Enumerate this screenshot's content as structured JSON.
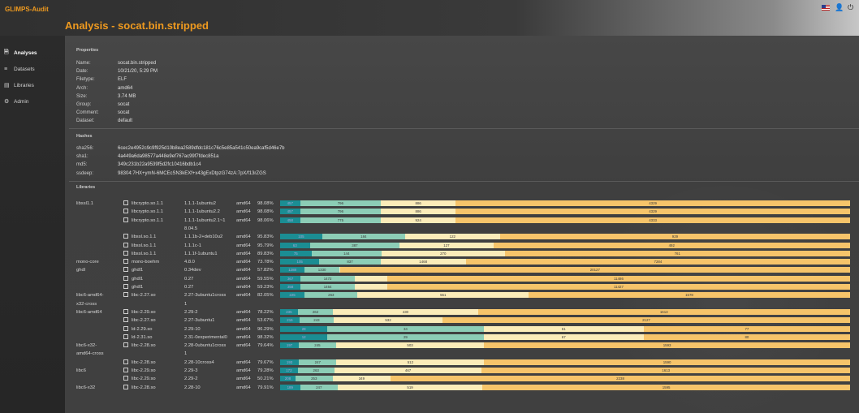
{
  "app": {
    "brand": "GLIMPS-Audit"
  },
  "page_title": "Analysis - socat.bin.stripped",
  "topbar": {
    "icons": [
      "us-flag-icon",
      "user-icon",
      "power-icon"
    ]
  },
  "sidebar": {
    "items": [
      {
        "label": "Analyses",
        "icon": "file-icon",
        "active": true
      },
      {
        "label": "Datasets",
        "icon": "datasets-icon",
        "active": false
      },
      {
        "label": "Libraries",
        "icon": "library-icon",
        "active": false
      },
      {
        "label": "Admin",
        "icon": "admin-icon",
        "active": false
      }
    ]
  },
  "properties": {
    "heading": "Properties",
    "rows": [
      {
        "k": "Name:",
        "v": "socat.bin.stripped"
      },
      {
        "k": "Date:",
        "v": "10/21/20, 5:29 PM"
      },
      {
        "k": "Filetype:",
        "v": "ELF"
      },
      {
        "k": "Arch:",
        "v": "amd64"
      },
      {
        "k": "Size:",
        "v": "3.74 MB"
      },
      {
        "k": "Group:",
        "v": "socat"
      },
      {
        "k": "Comment:",
        "v": "socat"
      },
      {
        "k": "Dataset:",
        "v": "default"
      }
    ]
  },
  "hashes": {
    "heading": "Hashes",
    "rows": [
      {
        "k": "sha256:",
        "v": "6cec2e4952c9c9f925d10b8ea2589dfdc181c76c5e85a541c50ea9caf5d46e7b"
      },
      {
        "k": "sha1:",
        "v": "4a449a6da98577a448e9ef767ac99f7fdec851a"
      },
      {
        "k": "md5:",
        "v": "349c231b22a9539f5d2fc10416bdb1c4"
      },
      {
        "k": "ssdeep:",
        "v": "98304:7HX+ymN-6MCEcSN3kEXf+x43gExDtpzG74zA:7pX/f13rZGS"
      }
    ]
  },
  "libraries": {
    "heading": "Libraries",
    "colors": {
      "s1": "#1b8d93",
      "s2": "#8ccdb6",
      "s3": "#fbecb9",
      "s4": "#f6c46a"
    },
    "rows": [
      {
        "group": "libssl1.1",
        "name": "libcrypto.so.1.1",
        "version": "1.1.1-1ubuntu2",
        "arch": "amd64",
        "percent": "98.08%",
        "segs": [
          [
            3.5,
            "457"
          ],
          [
            14.2,
            "796"
          ],
          [
            13.1,
            "886"
          ],
          [
            69.2,
            "4329"
          ]
        ]
      },
      {
        "group": "",
        "name": "libcrypto.so.1.1",
        "version": "1.1.1-1ubuntu2.2",
        "arch": "amd64",
        "percent": "98.08%",
        "segs": [
          [
            3.5,
            "457"
          ],
          [
            14.2,
            "796"
          ],
          [
            13.1,
            "886"
          ],
          [
            69.2,
            "4329"
          ]
        ]
      },
      {
        "group": "",
        "name": "libcrypto.so.1.1",
        "version": "1.1.1-1ubuntu2.1~1",
        "arch": "amd64",
        "percent": "98.06%",
        "segs": [
          [
            3.5,
            "458"
          ],
          [
            14.2,
            "775"
          ],
          [
            13.1,
            "924"
          ],
          [
            69.2,
            "4333"
          ]
        ]
      },
      {
        "group": "",
        "name": "",
        "version": "8.04.5",
        "arch": "",
        "percent": "",
        "segs": []
      },
      {
        "group": "",
        "name": "libssl.so.1.1",
        "version": "1.1.1b-2+deb10u2",
        "arch": "amd64",
        "percent": "95.83%",
        "segs": [
          [
            7.4,
            "105"
          ],
          [
            14.5,
            "184"
          ],
          [
            16.7,
            "122"
          ],
          [
            61.4,
            "929"
          ]
        ]
      },
      {
        "group": "",
        "name": "libssl.so.1.1",
        "version": "1.1.1c-1",
        "arch": "amd64",
        "percent": "95.79%",
        "segs": [
          [
            5.2,
            "63"
          ],
          [
            15.8,
            "387"
          ],
          [
            16.4,
            "127"
          ],
          [
            62.6,
            "492"
          ]
        ]
      },
      {
        "group": "",
        "name": "libssl.so.1.1",
        "version": "1.1.1f-1ubuntu1",
        "arch": "amd64",
        "percent": "89.83%",
        "segs": [
          [
            5.5,
            "75"
          ],
          [
            12.3,
            "144"
          ],
          [
            21.6,
            "270"
          ],
          [
            60.6,
            "761"
          ]
        ]
      },
      {
        "group": "mono-core",
        "name": "mono-boehm",
        "version": "4.8.0",
        "arch": "amd64",
        "percent": "73.78%",
        "segs": [
          [
            6.9,
            "105"
          ],
          [
            10.7,
            "837"
          ],
          [
            15.0,
            "1468"
          ],
          [
            67.4,
            "7284"
          ]
        ]
      },
      {
        "group": "ghdl",
        "name": "ghdl1",
        "version": "0.34dev",
        "arch": "amd64",
        "percent": "57.82%",
        "segs": [
          [
            4.3,
            "1288"
          ],
          [
            6.1,
            "1330"
          ],
          [
            0.1,
            ""
          ],
          [
            89.5,
            "20127"
          ]
        ]
      },
      {
        "group": "",
        "name": "ghdl1",
        "version": "0.27",
        "arch": "amd64",
        "percent": "59.55%",
        "segs": [
          [
            3.6,
            "367"
          ],
          [
            9.5,
            "1472"
          ],
          [
            5.7,
            ""
          ],
          [
            81.2,
            "11486"
          ]
        ]
      },
      {
        "group": "",
        "name": "ghdl1",
        "version": "0.27",
        "arch": "amd64",
        "percent": "59.23%",
        "segs": [
          [
            3.6,
            "358"
          ],
          [
            9.5,
            "1464"
          ],
          [
            5.7,
            ""
          ],
          [
            81.2,
            "11427"
          ]
        ]
      },
      {
        "group": "libc6-amd64-",
        "name": "libc-2.27.so",
        "version": "2.27-3ubuntu1cross",
        "arch": "amd64",
        "percent": "82.05%",
        "segs": [
          [
            4.3,
            "225"
          ],
          [
            9.3,
            "263"
          ],
          [
            30.0,
            "551"
          ],
          [
            56.4,
            "1578"
          ]
        ]
      },
      {
        "group": "x32-cross",
        "name": "",
        "version": "1",
        "arch": "",
        "percent": "",
        "segs": []
      },
      {
        "group": "libc6-amd64",
        "name": "libc-2.29.so",
        "version": "2.29-2",
        "arch": "amd64",
        "percent": "78.22%",
        "segs": [
          [
            3.1,
            "235"
          ],
          [
            6.2,
            "262"
          ],
          [
            25.4,
            "430"
          ],
          [
            65.3,
            "1613"
          ]
        ]
      },
      {
        "group": "",
        "name": "libc-2.27.so",
        "version": "2.27-3ubuntu1",
        "arch": "amd64",
        "percent": "53.67%",
        "segs": [
          [
            3.4,
            "216"
          ],
          [
            6.0,
            "243"
          ],
          [
            19.1,
            "532"
          ],
          [
            71.5,
            "2127"
          ]
        ]
      },
      {
        "group": "",
        "name": "ld-2.29.so",
        "version": "2.29-10",
        "arch": "amd64",
        "percent": "96.29%",
        "segs": [
          [
            8.3,
            "28"
          ],
          [
            27.4,
            "34"
          ],
          [
            28.1,
            "61"
          ],
          [
            36.2,
            "77"
          ]
        ]
      },
      {
        "group": "",
        "name": "ld-2.31.so",
        "version": "2.31-0experimental0",
        "arch": "amd64",
        "percent": "98.32%",
        "segs": [
          [
            8.3,
            "12"
          ],
          [
            27.4,
            "29"
          ],
          [
            28.1,
            "67"
          ],
          [
            36.2,
            "80"
          ]
        ]
      },
      {
        "group": "libc6-x32-",
        "name": "libc-2.28.so",
        "version": "2.28-0ubuntu1cross",
        "arch": "amd64",
        "percent": "79.64%",
        "segs": [
          [
            3.3,
            "197"
          ],
          [
            6.5,
            "245"
          ],
          [
            26.0,
            "503"
          ],
          [
            64.2,
            "1593"
          ]
        ]
      },
      {
        "group": "amd64-cross",
        "name": "",
        "version": "1",
        "arch": "",
        "percent": "",
        "segs": []
      },
      {
        "group": "",
        "name": "libc-2.28.so",
        "version": "2.28-10cross4",
        "arch": "amd64",
        "percent": "79.67%",
        "segs": [
          [
            3.3,
            "193"
          ],
          [
            6.6,
            "247"
          ],
          [
            25.9,
            "512"
          ],
          [
            64.2,
            "1590"
          ]
        ]
      },
      {
        "group": "libc6",
        "name": "libc-2.29.so",
        "version": "2.29-3",
        "arch": "amd64",
        "percent": "79.28%",
        "segs": [
          [
            3.1,
            "172"
          ],
          [
            6.4,
            "263"
          ],
          [
            25.9,
            "467"
          ],
          [
            64.6,
            "1613"
          ]
        ]
      },
      {
        "group": "",
        "name": "libc-2.29.so",
        "version": "2.29-2",
        "arch": "amd64",
        "percent": "50.21%",
        "segs": [
          [
            2.7,
            "208"
          ],
          [
            6.5,
            "253"
          ],
          [
            10.2,
            "349"
          ],
          [
            80.6,
            "2238"
          ]
        ]
      },
      {
        "group": "libc6-x32",
        "name": "libc-2.28.so",
        "version": "2.28-10",
        "arch": "amd64",
        "percent": "79.91%",
        "segs": [
          [
            3.5,
            "189"
          ],
          [
            6.6,
            "247"
          ],
          [
            25.4,
            "519"
          ],
          [
            64.5,
            "1595"
          ]
        ]
      }
    ]
  }
}
